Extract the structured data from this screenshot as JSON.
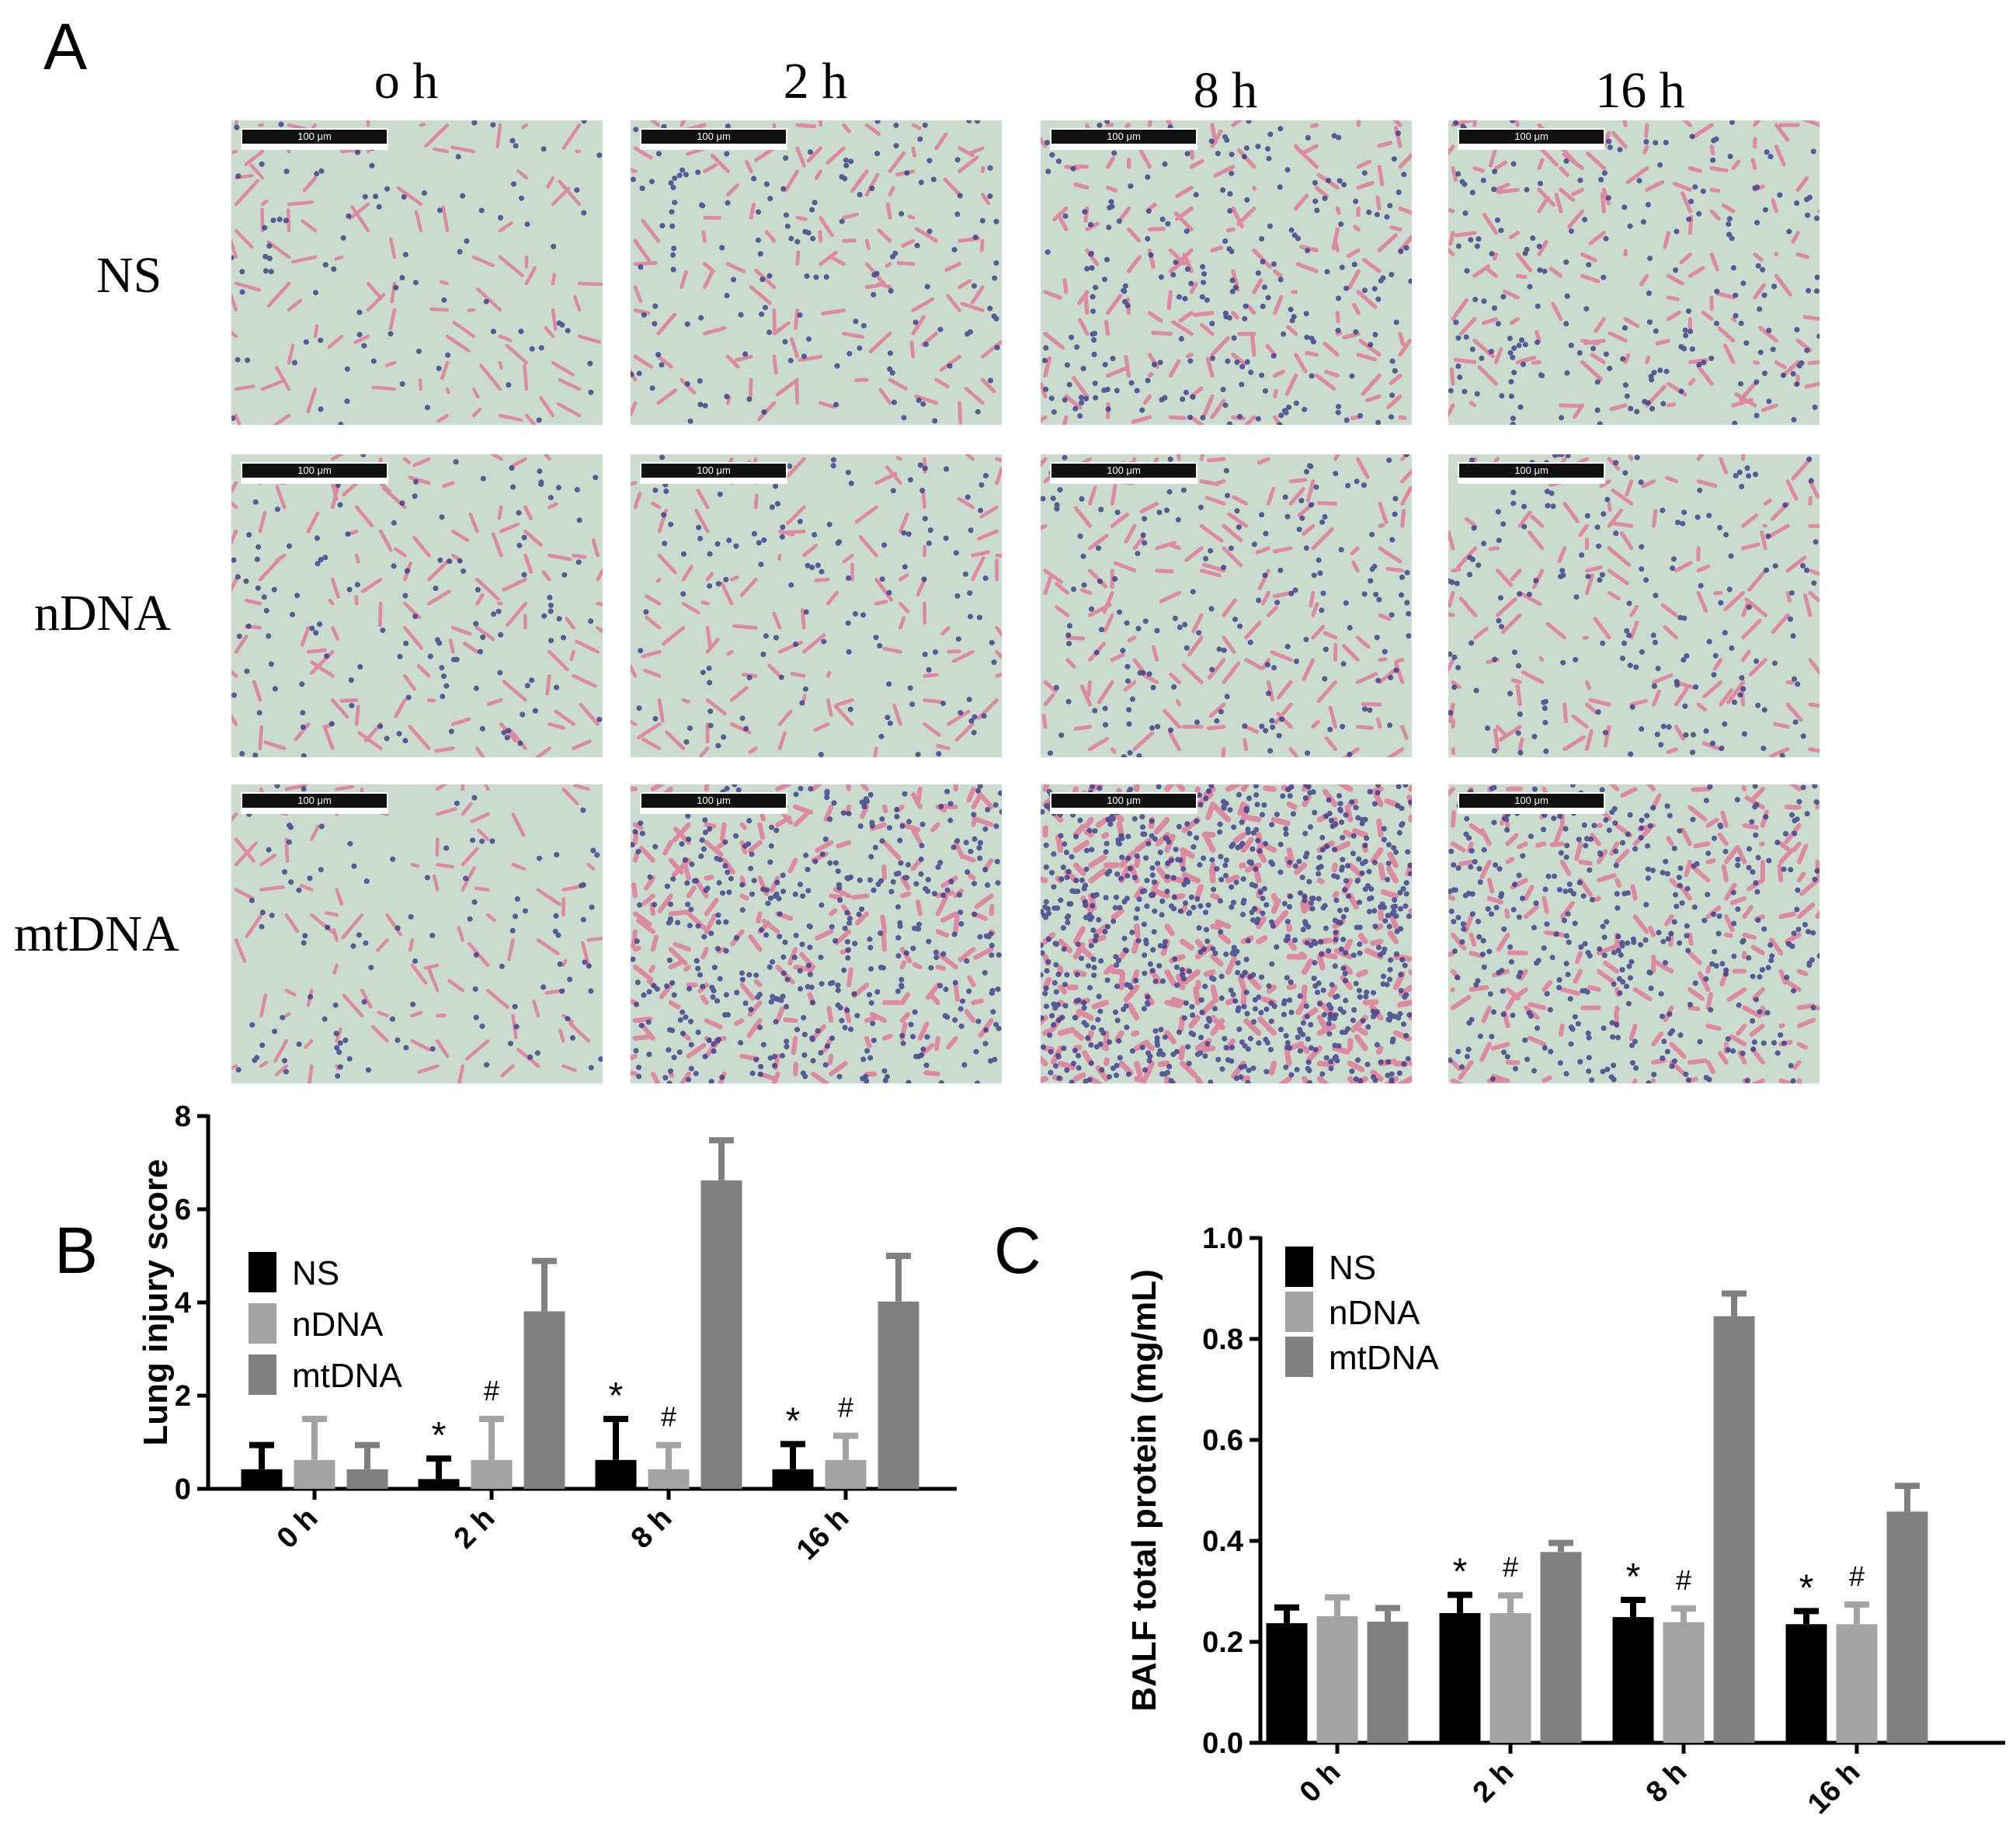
{
  "panels": {
    "A": "A",
    "B": "B",
    "C": "C"
  },
  "histology": {
    "columns": [
      "o h",
      "2 h",
      "8 h",
      "16 h"
    ],
    "rows": [
      "NS",
      "nDNA",
      "mtDNA"
    ],
    "scale_bar_label": "100 μm"
  },
  "chart_data": [
    {
      "type": "bar",
      "panel": "B",
      "categories": [
        "0 h",
        "2 h",
        "8 h",
        "16 h"
      ],
      "ylabel": "Lung injury score",
      "xlabel": "",
      "ylim": [
        0,
        8
      ],
      "yticks": [
        "0",
        "2",
        "4",
        "6",
        "8"
      ],
      "legend": "top-left",
      "series": [
        {
          "name": "NS",
          "color": "#000000",
          "values": [
            0.42,
            0.21,
            0.62,
            0.42
          ],
          "errors": [
            0.52,
            0.44,
            0.88,
            0.54
          ]
        },
        {
          "name": "nDNA",
          "color": "#a3a3a3",
          "values": [
            0.62,
            0.62,
            0.42,
            0.62
          ],
          "errors": [
            0.88,
            0.88,
            0.52,
            0.52
          ]
        },
        {
          "name": "mtDNA",
          "color": "#808080",
          "values": [
            0.42,
            3.81,
            6.62,
            4.02
          ],
          "errors": [
            0.52,
            1.08,
            0.86,
            0.98
          ]
        }
      ],
      "annotations": [
        {
          "category": 1,
          "series": 0,
          "text": "*"
        },
        {
          "category": 1,
          "series": 1,
          "text": "#"
        },
        {
          "category": 2,
          "series": 0,
          "text": "*"
        },
        {
          "category": 2,
          "series": 1,
          "text": "#"
        },
        {
          "category": 3,
          "series": 0,
          "text": "*"
        },
        {
          "category": 3,
          "series": 1,
          "text": "#"
        }
      ]
    },
    {
      "type": "bar",
      "panel": "C",
      "categories": [
        "0 h",
        "2 h",
        "8 h",
        "16 h"
      ],
      "ylabel": "BALF total protein (mg/mL)",
      "xlabel": "",
      "ylim": [
        0,
        1.0
      ],
      "yticks": [
        "0.0",
        "0.2",
        "0.4",
        "0.6",
        "0.8",
        "1.0"
      ],
      "legend": "top-left",
      "series": [
        {
          "name": "NS",
          "color": "#000000",
          "values": [
            0.237,
            0.257,
            0.249,
            0.235
          ],
          "errors": [
            0.031,
            0.036,
            0.034,
            0.026
          ]
        },
        {
          "name": "nDNA",
          "color": "#a3a3a3",
          "values": [
            0.251,
            0.257,
            0.239,
            0.235
          ],
          "errors": [
            0.037,
            0.035,
            0.027,
            0.039
          ]
        },
        {
          "name": "mtDNA",
          "color": "#808080",
          "values": [
            0.24,
            0.378,
            0.845,
            0.458
          ],
          "errors": [
            0.027,
            0.018,
            0.045,
            0.051
          ]
        }
      ],
      "annotations": [
        {
          "category": 1,
          "series": 0,
          "text": "*"
        },
        {
          "category": 1,
          "series": 1,
          "text": "#"
        },
        {
          "category": 2,
          "series": 0,
          "text": "*"
        },
        {
          "category": 2,
          "series": 1,
          "text": "#"
        },
        {
          "category": 3,
          "series": 0,
          "text": "*"
        },
        {
          "category": 3,
          "series": 1,
          "text": "#"
        }
      ]
    }
  ]
}
